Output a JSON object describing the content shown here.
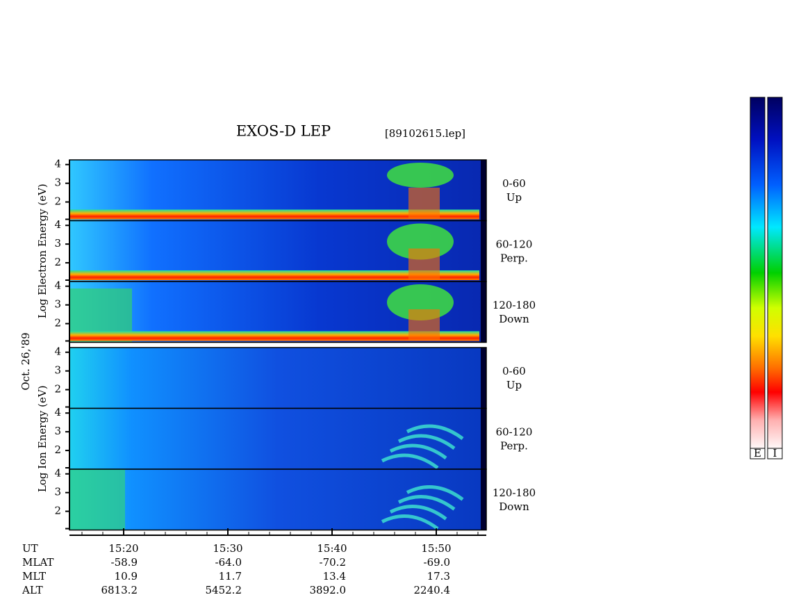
{
  "chart_data": {
    "type": "spectrogram",
    "title": "EXOS-D LEP",
    "file_label": "[89102615.lep]",
    "date_label": "Oct. 26,'89",
    "groups": [
      {
        "y_label": "Log Electron Energy (eV)",
        "panels": [
          {
            "angle": "0-60",
            "direction": "Up"
          },
          {
            "angle": "60-120",
            "direction": "Perp."
          },
          {
            "angle": "120-180",
            "direction": "Down"
          }
        ]
      },
      {
        "y_label": "Log Ion Energy (eV)",
        "panels": [
          {
            "angle": "0-60",
            "direction": "Up"
          },
          {
            "angle": "60-120",
            "direction": "Perp."
          },
          {
            "angle": "120-180",
            "direction": "Down"
          }
        ]
      }
    ],
    "ylim": [
      1,
      4.25
    ],
    "yticks": [
      2,
      3,
      4
    ],
    "xlim": [
      14.8,
      54.8
    ],
    "xticks": [
      {
        "value": 20,
        "label": "15:20"
      },
      {
        "value": 30,
        "label": "15:30"
      },
      {
        "value": 40,
        "label": "15:40"
      },
      {
        "value": 50,
        "label": "15:50"
      }
    ],
    "orbit_rows": [
      {
        "name": "UT"
      },
      {
        "name": "MLAT",
        "values": [
          "-58.9",
          "-64.0",
          "-70.2",
          "-69.0"
        ]
      },
      {
        "name": "MLT",
        "values": [
          "10.9",
          "11.7",
          "13.4",
          "17.3"
        ]
      },
      {
        "name": "ALT",
        "values": [
          "6813.2",
          "5452.2",
          "3892.0",
          "2240.4"
        ]
      }
    ],
    "colorbars": [
      "E",
      "I"
    ]
  }
}
